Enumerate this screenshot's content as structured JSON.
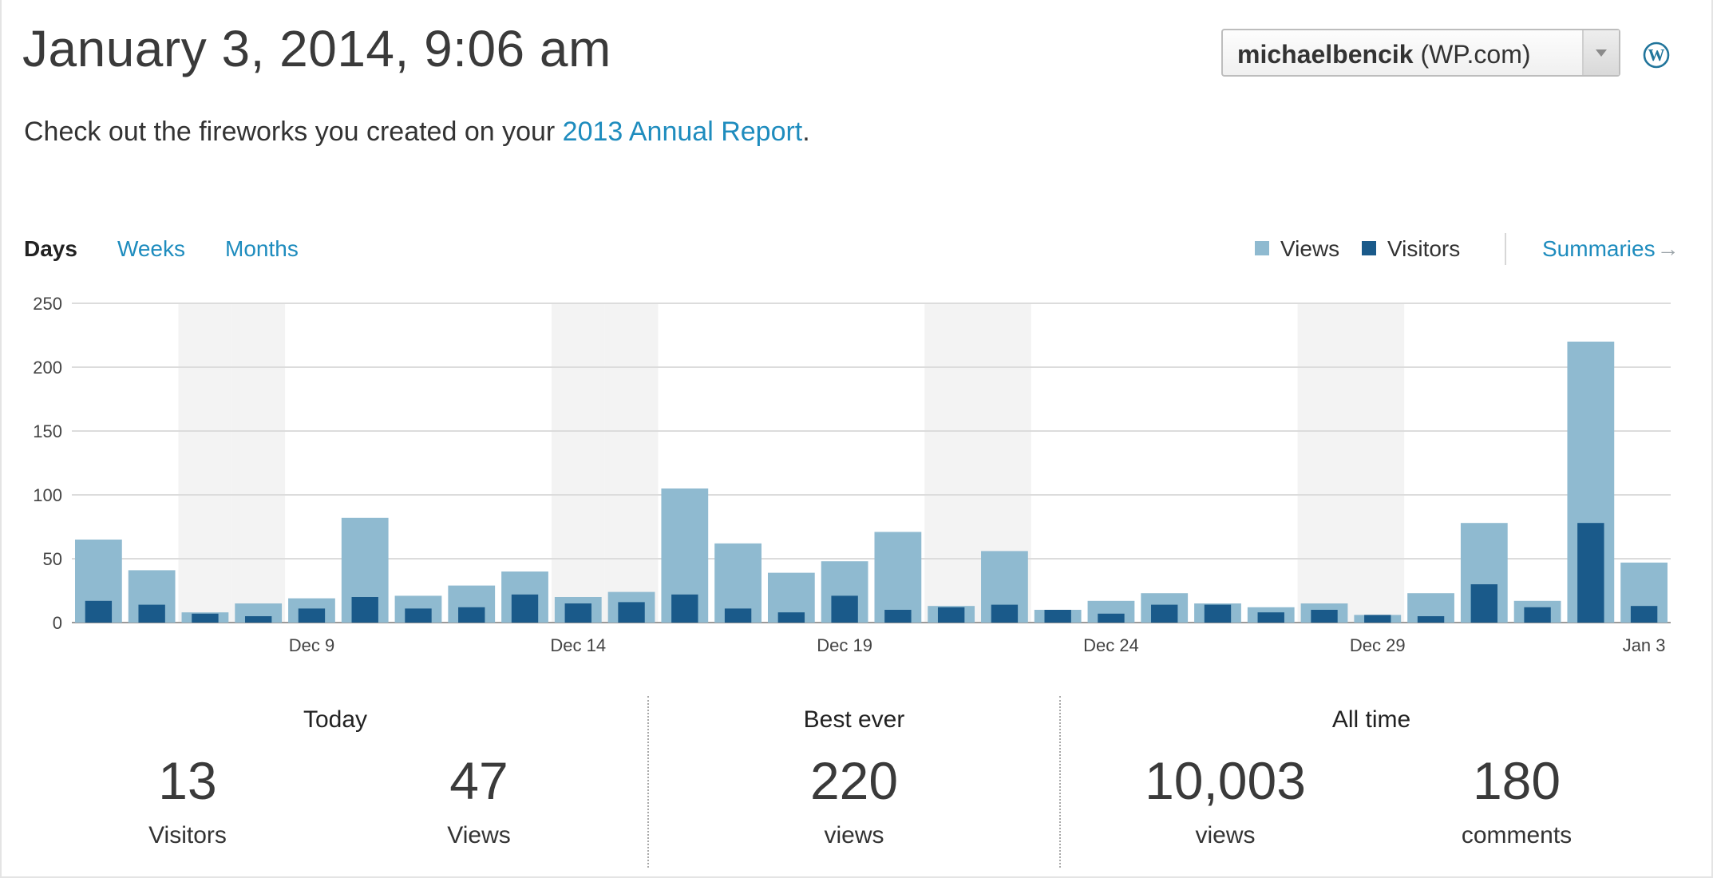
{
  "header": {
    "datetime": "January 3, 2014, 9:06 am",
    "account_user": "michaelbencik",
    "account_suffix": "(WP.com)",
    "wordpress_icon": "wordpress-logo-icon"
  },
  "promo": {
    "prefix": "Check out the fireworks you created on your ",
    "link_text": "2013 Annual Report",
    "suffix": "."
  },
  "tabs": {
    "days": "Days",
    "weeks": "Weeks",
    "months": "Months",
    "active": "days"
  },
  "legend": {
    "views": "Views",
    "visitors": "Visitors",
    "summaries": "Summaries",
    "summaries_arrow": "→"
  },
  "colors": {
    "views": "#8fbad0",
    "visitors": "#1a5a8a",
    "weekend_band": "#f3f3f3",
    "link": "#1e8cbe"
  },
  "chart_data": {
    "type": "bar",
    "categories": [
      "Dec 5",
      "Dec 6",
      "Dec 7",
      "Dec 8",
      "Dec 9",
      "Dec 10",
      "Dec 11",
      "Dec 12",
      "Dec 13",
      "Dec 14",
      "Dec 15",
      "Dec 16",
      "Dec 17",
      "Dec 18",
      "Dec 19",
      "Dec 20",
      "Dec 21",
      "Dec 22",
      "Dec 23",
      "Dec 24",
      "Dec 25",
      "Dec 26",
      "Dec 27",
      "Dec 28",
      "Dec 29",
      "Dec 30",
      "Dec 31",
      "Jan 1",
      "Jan 2",
      "Jan 3"
    ],
    "x_tick_labels": [
      "Dec 9",
      "Dec 14",
      "Dec 19",
      "Dec 24",
      "Dec 29",
      "Jan 3"
    ],
    "series": [
      {
        "name": "Views",
        "values": [
          65,
          41,
          8,
          15,
          19,
          82,
          21,
          29,
          40,
          20,
          24,
          105,
          62,
          39,
          48,
          71,
          13,
          56,
          10,
          17,
          23,
          15,
          12,
          15,
          6,
          23,
          78,
          17,
          220,
          47
        ]
      },
      {
        "name": "Visitors",
        "values": [
          17,
          14,
          7,
          5,
          11,
          20,
          11,
          12,
          22,
          15,
          16,
          22,
          11,
          8,
          21,
          10,
          12,
          14,
          10,
          7,
          14,
          14,
          8,
          10,
          6,
          5,
          30,
          12,
          78,
          13
        ]
      }
    ],
    "weekend_categories": [
      "Dec 7",
      "Dec 8",
      "Dec 14",
      "Dec 15",
      "Dec 21",
      "Dec 22",
      "Dec 28",
      "Dec 29"
    ],
    "y_ticks": [
      0,
      50,
      100,
      150,
      200,
      250
    ],
    "ylim": [
      0,
      250
    ],
    "grid": true,
    "legend_position": "top-right"
  },
  "stats": {
    "today": {
      "heading": "Today",
      "visitors_value": "13",
      "visitors_label": "Visitors",
      "views_value": "47",
      "views_label": "Views"
    },
    "best": {
      "heading": "Best ever",
      "views_value": "220",
      "views_label": "views"
    },
    "all_time": {
      "heading": "All time",
      "views_value": "10,003",
      "views_label": "views",
      "comments_value": "180",
      "comments_label": "comments"
    }
  }
}
